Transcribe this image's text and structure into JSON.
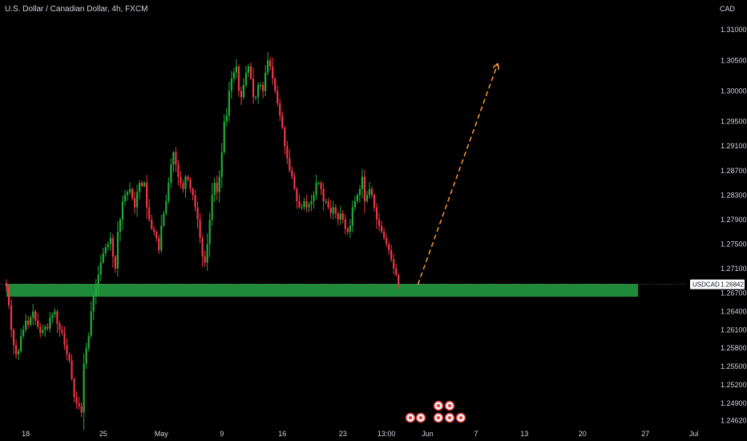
{
  "header": {
    "title": "U.S. Dollar / Canadian Dollar, 4h, FXCM",
    "currency": "CAD"
  },
  "chart_data": {
    "type": "candlestick",
    "symbol": "USDCAD",
    "interval": "4h",
    "broker": "FXCM",
    "ylim": [
      1.2452,
      1.3125
    ],
    "y_ticks": [
      "1.31000",
      "1.30500",
      "1.30000",
      "1.29500",
      "1.29100",
      "1.28700",
      "1.28300",
      "1.27900",
      "1.27500",
      "1.27100",
      "1.26700",
      "1.26400",
      "1.26100",
      "1.25800",
      "1.25500",
      "1.25200",
      "1.24900",
      "1.24620"
    ],
    "x_ticks": [
      {
        "label": "18",
        "bar": 8
      },
      {
        "label": "25",
        "bar": 40
      },
      {
        "label": "May",
        "bar": 64
      },
      {
        "label": "9",
        "bar": 89
      },
      {
        "label": "16",
        "bar": 114
      },
      {
        "label": "23",
        "bar": 139
      },
      {
        "label": "13:00",
        "bar": 157
      },
      {
        "label": "Jun",
        "bar": 174
      },
      {
        "label": "7",
        "bar": 194
      },
      {
        "label": "13",
        "bar": 214
      },
      {
        "label": "20",
        "bar": 238
      },
      {
        "label": "27",
        "bar": 264
      },
      {
        "label": "Jul",
        "bar": 284
      }
    ],
    "closes": [
      1.268,
      1.265,
      1.261,
      1.2585,
      1.257,
      1.2575,
      1.26,
      1.261,
      1.2625,
      1.2618,
      1.263,
      1.264,
      1.2625,
      1.2615,
      1.2605,
      1.261,
      1.2615,
      1.2612,
      1.263,
      1.2635,
      1.264,
      1.262,
      1.261,
      1.2605,
      1.2585,
      1.257,
      1.256,
      1.253,
      1.25,
      1.249,
      1.2485,
      1.2475,
      1.2555,
      1.258,
      1.26,
      1.264,
      1.2665,
      1.268,
      1.27,
      1.272,
      1.2735,
      1.2745,
      1.275,
      1.276,
      1.273,
      1.271,
      1.277,
      1.279,
      1.282,
      1.283,
      1.2835,
      1.284,
      1.2825,
      1.281,
      1.2835,
      1.285,
      1.2845,
      1.285,
      1.281,
      1.279,
      1.2775,
      1.277,
      1.276,
      1.274,
      1.278,
      1.28,
      1.282,
      1.285,
      1.288,
      1.29,
      1.288,
      1.286,
      1.285,
      1.284,
      1.286,
      1.2855,
      1.284,
      1.283,
      1.281,
      1.279,
      1.276,
      1.273,
      1.272,
      1.275,
      1.279,
      1.283,
      1.285,
      1.2835,
      1.286,
      1.29,
      1.295,
      1.296,
      1.3,
      1.302,
      1.303,
      1.304,
      1.3,
      1.299,
      1.301,
      1.303,
      1.304,
      1.302,
      1.299,
      1.299,
      1.301,
      1.301,
      1.3,
      1.303,
      1.305,
      1.304,
      1.302,
      1.3,
      1.298,
      1.296,
      1.294,
      1.291,
      1.289,
      1.287,
      1.286,
      1.284,
      1.282,
      1.281,
      1.281,
      1.282,
      1.281,
      1.2815,
      1.282,
      1.283,
      1.285,
      1.285,
      1.284,
      1.282,
      1.282,
      1.281,
      1.28,
      1.281,
      1.28,
      1.279,
      1.28,
      1.279,
      1.2775,
      1.277,
      1.278,
      1.281,
      1.282,
      1.283,
      1.284,
      1.286,
      1.282,
      1.283,
      1.284,
      1.283,
      1.281,
      1.279,
      1.278,
      1.277,
      1.276,
      1.275,
      1.274,
      1.2725,
      1.271,
      1.27,
      1.2685
    ],
    "support_zone": {
      "low": 1.2664,
      "high": 1.2685,
      "start_bar": 0,
      "end_bar": 261
    },
    "projection": {
      "from_bar": 170,
      "from_price": 1.2684,
      "to_bar": 203,
      "to_price": 1.3045
    },
    "last_price": {
      "label": "USDCAD",
      "value": "1.26842",
      "price": 1.26842
    },
    "colors": {
      "up": "#26a69a",
      "up_candle": "#22ab3a",
      "down": "#f23645",
      "zone": "#1e8a3a",
      "projection": "#ff9a2e",
      "axis_text": "#d1d4dc",
      "background": "#000000"
    },
    "event_markers": {
      "count": 7
    }
  }
}
